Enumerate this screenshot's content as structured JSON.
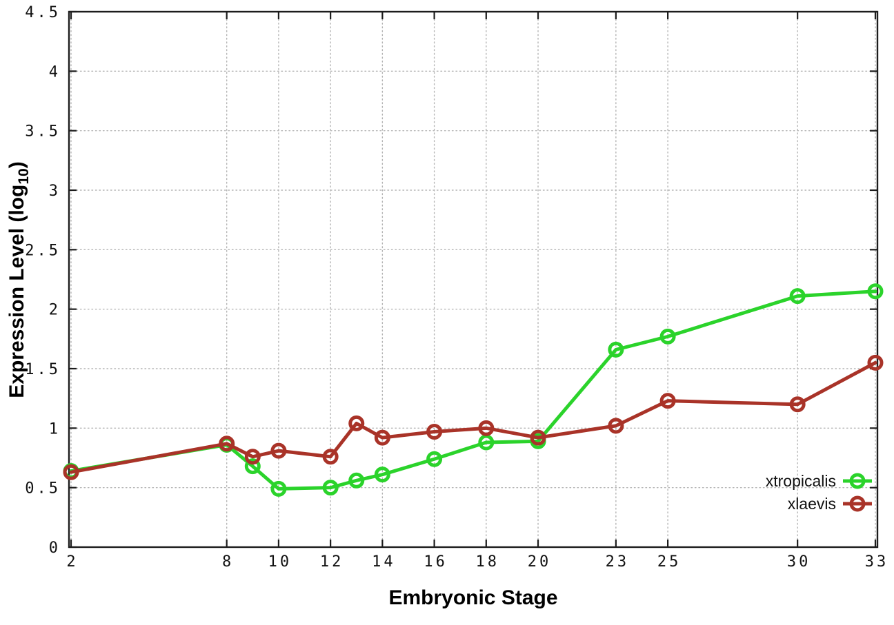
{
  "figure": {
    "background": "#ffffff",
    "ylabel": {
      "main": "Expression Level (log",
      "sub": "10",
      "end": ")"
    }
  },
  "chart_data": {
    "type": "line",
    "title": "",
    "xlabel": "Embryonic Stage",
    "ylabel": "Expression Level (log10)",
    "x": [
      2,
      8,
      9,
      10,
      12,
      13,
      14,
      16,
      18,
      20,
      23,
      25,
      30,
      33
    ],
    "series": [
      {
        "name": "xtropicalis",
        "color": "#2bd32b",
        "values": [
          0.64,
          0.86,
          0.68,
          0.49,
          0.5,
          0.56,
          0.61,
          0.74,
          0.88,
          0.89,
          1.66,
          1.77,
          2.11,
          2.15
        ]
      },
      {
        "name": "xlaevis",
        "color": "#a93328",
        "values": [
          0.63,
          0.87,
          0.76,
          0.81,
          0.76,
          1.04,
          0.92,
          0.97,
          1.0,
          0.92,
          1.02,
          1.23,
          1.2,
          1.55
        ]
      }
    ],
    "xticks": {
      "values": [
        2,
        8,
        10,
        12,
        14,
        16,
        18,
        20,
        23,
        25,
        30,
        33
      ],
      "labels": [
        "2",
        "8",
        "10",
        "12",
        "14",
        "16",
        "18",
        "20",
        "23",
        "25",
        "30",
        "33"
      ]
    },
    "yticks": {
      "values": [
        0,
        0.5,
        1,
        1.5,
        2,
        2.5,
        3,
        3.5,
        4,
        4.5
      ],
      "labels": [
        "0",
        "0.5",
        "1",
        "1.5",
        "2",
        "2.5",
        "3",
        "3.5",
        "4",
        "4.5"
      ]
    },
    "xlim": [
      1.92,
      33.08
    ],
    "ylim": [
      0,
      4.5
    ],
    "grid": true,
    "grid_color": "#b4b4b4",
    "axis_color": "#1c1c1c",
    "legend_position": "inside-right",
    "legend": [
      "xtropicalis",
      "xlaevis"
    ],
    "marker": "open-circle",
    "line_width": 5,
    "marker_radius": 9,
    "marker_stroke": 5
  }
}
